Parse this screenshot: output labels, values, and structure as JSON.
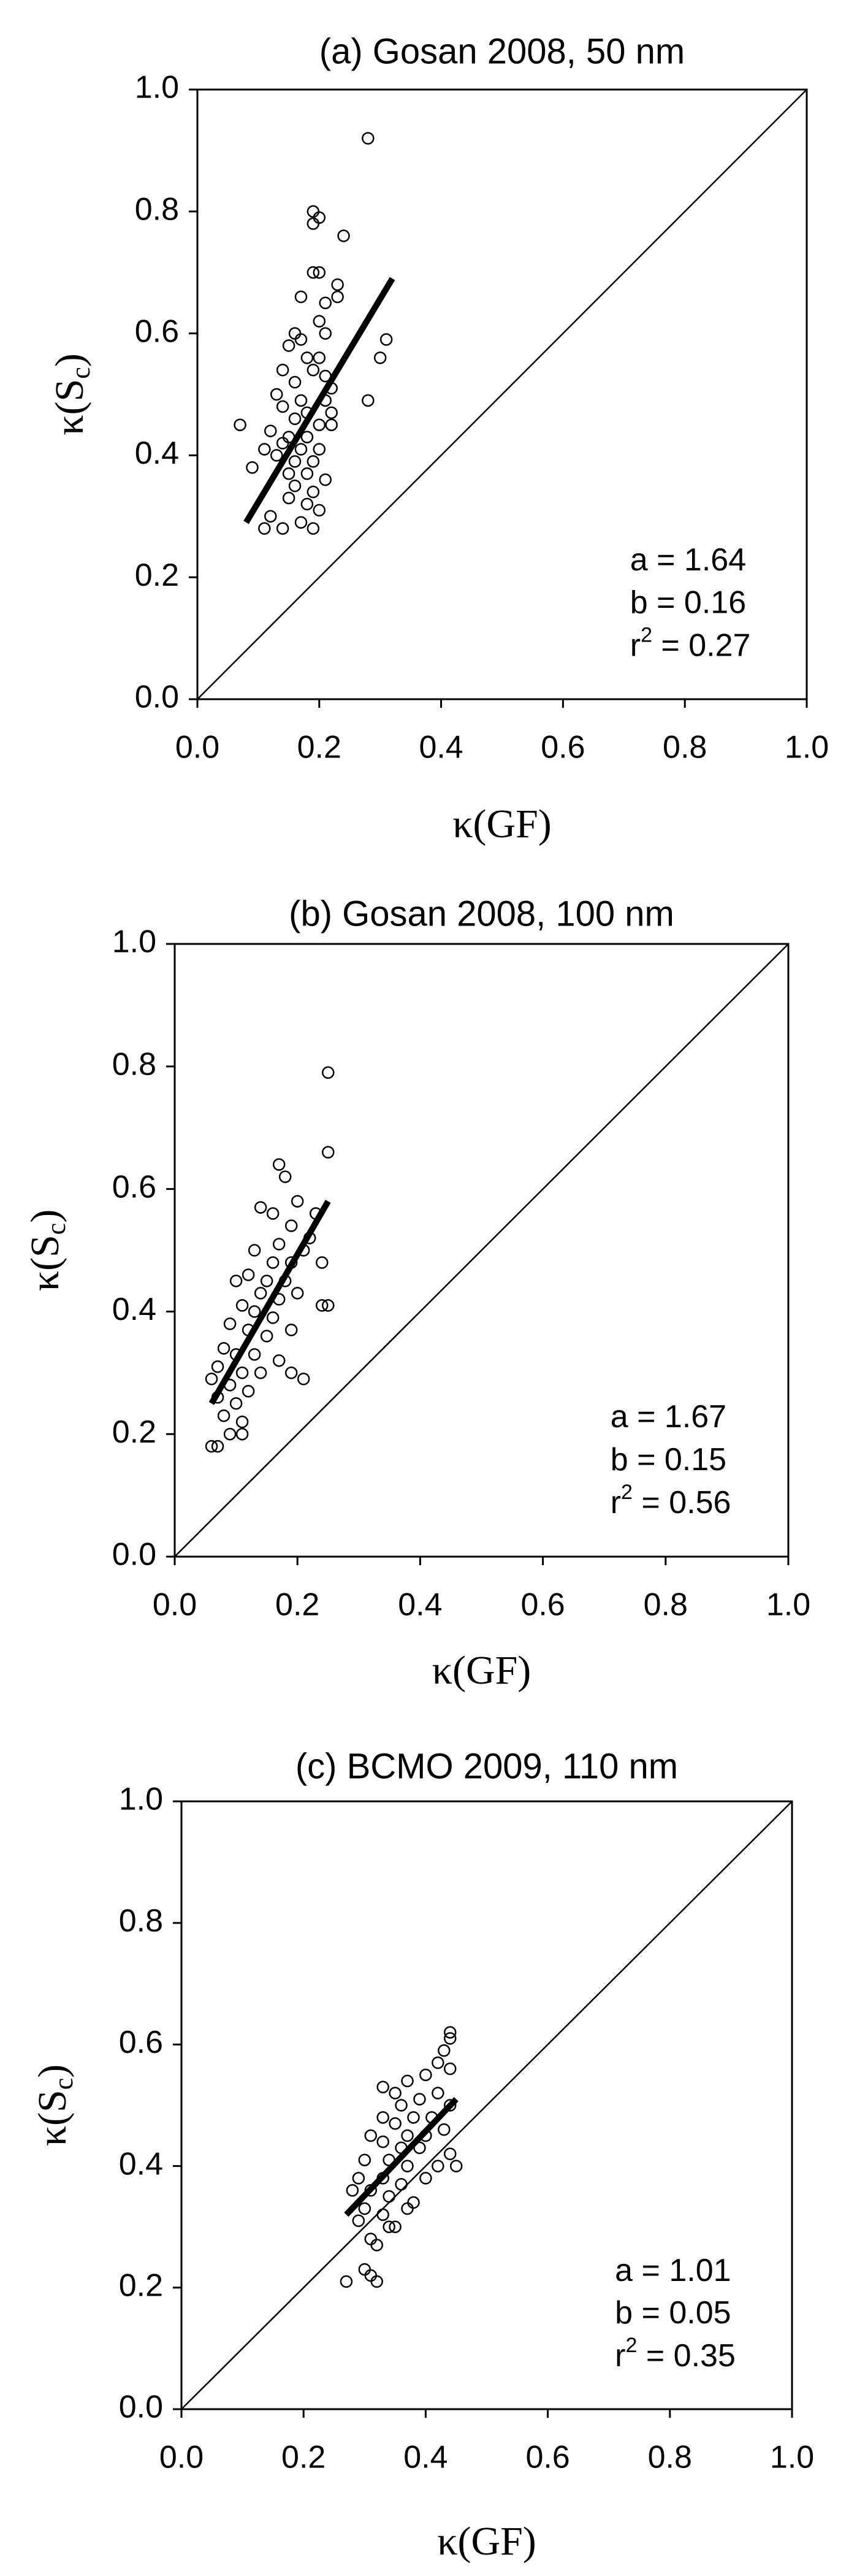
{
  "chart_data": [
    {
      "type": "scatter",
      "title": "(a) Gosan 2008, 50 nm",
      "x_label": "κ(GF)",
      "y_label": {
        "main": "κ(S",
        "sub": "c",
        "end": ")"
      },
      "xlim": [
        0,
        1
      ],
      "ylim": [
        0,
        1
      ],
      "xticks": [
        {
          "value": 0,
          "label": "0.0"
        },
        0.2,
        0.4,
        0.6,
        0.8,
        {
          "value": 1,
          "label": "1.0"
        }
      ],
      "yticks": [
        {
          "value": 0,
          "label": "0.0"
        },
        0.2,
        0.4,
        0.6,
        0.8,
        {
          "value": 1,
          "label": "1.0"
        }
      ],
      "annotations": {
        "a": "a = 1.64",
        "b": "b = 0.16",
        "r2": {
          "base": "r",
          "sup": "2",
          "rest": " = 0.27"
        }
      },
      "series": [
        {
          "mode": "markers",
          "color": "#000000",
          "x": [
            0.28,
            0.19,
            0.19,
            0.2,
            0.24,
            0.19,
            0.2,
            0.17,
            0.23,
            0.23,
            0.21,
            0.16,
            0.17,
            0.2,
            0.21,
            0.31,
            0.15,
            0.18,
            0.2,
            0.3,
            0.14,
            0.19,
            0.21,
            0.16,
            0.22,
            0.13,
            0.17,
            0.21,
            0.28,
            0.14,
            0.18,
            0.22,
            0.16,
            0.2,
            0.22,
            0.07,
            0.12,
            0.15,
            0.18,
            0.11,
            0.14,
            0.17,
            0.2,
            0.13,
            0.16,
            0.19,
            0.09,
            0.15,
            0.18,
            0.21,
            0.16,
            0.19,
            0.15,
            0.18,
            0.2,
            0.12,
            0.17,
            0.14,
            0.11,
            0.19
          ],
          "values": [
            0.92,
            0.8,
            0.78,
            0.79,
            0.76,
            0.7,
            0.7,
            0.66,
            0.68,
            0.66,
            0.65,
            0.6,
            0.59,
            0.62,
            0.6,
            0.59,
            0.58,
            0.56,
            0.56,
            0.56,
            0.54,
            0.54,
            0.53,
            0.52,
            0.51,
            0.5,
            0.49,
            0.49,
            0.49,
            0.48,
            0.47,
            0.47,
            0.46,
            0.45,
            0.45,
            0.45,
            0.44,
            0.43,
            0.43,
            0.41,
            0.42,
            0.41,
            0.41,
            0.4,
            0.39,
            0.39,
            0.38,
            0.37,
            0.37,
            0.36,
            0.35,
            0.34,
            0.33,
            0.32,
            0.31,
            0.3,
            0.29,
            0.28,
            0.28,
            0.28
          ]
        },
        {
          "mode": "line",
          "color": "#000000",
          "x": [
            0.08,
            0.32
          ],
          "values": [
            0.29,
            0.69
          ]
        }
      ]
    },
    {
      "type": "scatter",
      "title": "(b) Gosan 2008, 100 nm",
      "x_label": "κ(GF)",
      "y_label": {
        "main": "κ(S",
        "sub": "c",
        "end": ")"
      },
      "xlim": [
        0,
        1
      ],
      "ylim": [
        0,
        1
      ],
      "xticks": [
        {
          "value": 0,
          "label": "0.0"
        },
        0.2,
        0.4,
        0.6,
        0.8,
        {
          "value": 1,
          "label": "1.0"
        }
      ],
      "yticks": [
        {
          "value": 0,
          "label": "0.0"
        },
        0.2,
        0.4,
        0.6,
        0.8,
        {
          "value": 1,
          "label": "1.0"
        }
      ],
      "annotations": {
        "a": "a = 1.67",
        "b": "b = 0.15",
        "r2": {
          "base": "r",
          "sup": "2",
          "rest": " = 0.56"
        }
      },
      "series": [
        {
          "mode": "markers",
          "color": "#000000",
          "x": [
            0.25,
            0.25,
            0.17,
            0.18,
            0.14,
            0.2,
            0.16,
            0.23,
            0.19,
            0.22,
            0.17,
            0.21,
            0.13,
            0.16,
            0.19,
            0.24,
            0.12,
            0.15,
            0.18,
            0.1,
            0.14,
            0.17,
            0.2,
            0.11,
            0.13,
            0.16,
            0.09,
            0.12,
            0.15,
            0.19,
            0.24,
            0.25,
            0.08,
            0.1,
            0.13,
            0.17,
            0.07,
            0.11,
            0.14,
            0.19,
            0.21,
            0.06,
            0.09,
            0.12,
            0.07,
            0.1,
            0.08,
            0.11,
            0.09,
            0.11,
            0.06,
            0.07
          ],
          "values": [
            0.79,
            0.66,
            0.64,
            0.62,
            0.57,
            0.58,
            0.56,
            0.56,
            0.54,
            0.52,
            0.51,
            0.5,
            0.5,
            0.48,
            0.48,
            0.48,
            0.46,
            0.45,
            0.45,
            0.45,
            0.43,
            0.42,
            0.43,
            0.41,
            0.4,
            0.39,
            0.38,
            0.37,
            0.36,
            0.37,
            0.41,
            0.41,
            0.34,
            0.33,
            0.33,
            0.32,
            0.31,
            0.3,
            0.3,
            0.3,
            0.29,
            0.29,
            0.28,
            0.27,
            0.26,
            0.25,
            0.23,
            0.22,
            0.2,
            0.2,
            0.18,
            0.18
          ]
        },
        {
          "mode": "line",
          "color": "#000000",
          "x": [
            0.06,
            0.25
          ],
          "values": [
            0.25,
            0.58
          ]
        }
      ]
    },
    {
      "type": "scatter",
      "title": "(c) BCMO 2009, 110 nm",
      "x_label": "κ(GF)",
      "y_label": {
        "main": "κ(S",
        "sub": "c",
        "end": ")"
      },
      "xlim": [
        0,
        1
      ],
      "ylim": [
        0,
        1
      ],
      "xticks": [
        {
          "value": 0,
          "label": "0.0"
        },
        0.2,
        0.4,
        0.6,
        0.8,
        {
          "value": 1,
          "label": "1.0"
        }
      ],
      "yticks": [
        {
          "value": 0,
          "label": "0.0"
        },
        0.2,
        0.4,
        0.6,
        0.8,
        {
          "value": 1,
          "label": "1.0"
        }
      ],
      "annotations": {
        "a": "a = 1.01",
        "b": "b = 0.05",
        "r2": {
          "base": "r",
          "sup": "2",
          "rest": " = 0.35"
        }
      },
      "series": [
        {
          "mode": "markers",
          "color": "#000000",
          "x": [
            0.44,
            0.44,
            0.43,
            0.42,
            0.44,
            0.4,
            0.37,
            0.33,
            0.35,
            0.42,
            0.39,
            0.36,
            0.44,
            0.33,
            0.38,
            0.41,
            0.35,
            0.43,
            0.31,
            0.37,
            0.4,
            0.33,
            0.36,
            0.39,
            0.44,
            0.3,
            0.34,
            0.37,
            0.42,
            0.45,
            0.29,
            0.33,
            0.36,
            0.4,
            0.28,
            0.31,
            0.34,
            0.38,
            0.3,
            0.33,
            0.37,
            0.29,
            0.34,
            0.35,
            0.31,
            0.32,
            0.3,
            0.31,
            0.32,
            0.27
          ],
          "values": [
            0.62,
            0.61,
            0.59,
            0.57,
            0.56,
            0.55,
            0.54,
            0.53,
            0.52,
            0.52,
            0.51,
            0.5,
            0.5,
            0.48,
            0.48,
            0.48,
            0.47,
            0.46,
            0.45,
            0.45,
            0.45,
            0.44,
            0.43,
            0.43,
            0.42,
            0.41,
            0.41,
            0.4,
            0.4,
            0.4,
            0.38,
            0.38,
            0.37,
            0.38,
            0.36,
            0.36,
            0.35,
            0.34,
            0.33,
            0.32,
            0.33,
            0.31,
            0.3,
            0.3,
            0.28,
            0.27,
            0.23,
            0.22,
            0.21,
            0.21
          ]
        },
        {
          "mode": "line",
          "color": "#000000",
          "x": [
            0.27,
            0.45
          ],
          "values": [
            0.32,
            0.51
          ]
        }
      ]
    }
  ]
}
